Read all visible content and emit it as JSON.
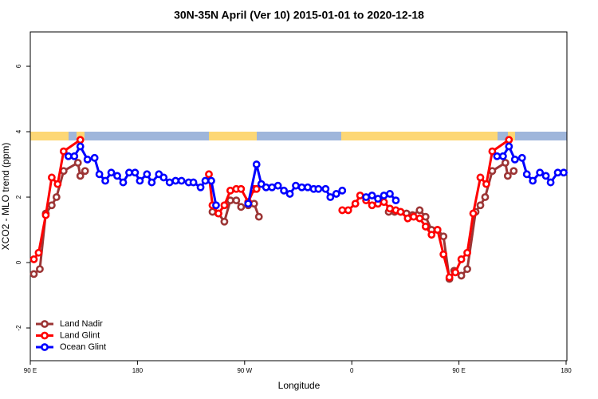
{
  "chart_data": {
    "type": "line",
    "title": "30N-35N April (Ver 10)   2015-01-01 to 2020-12-18",
    "xlabel": "Longitude",
    "ylabel": "XCO2 - MLO trend (ppm)",
    "xlim": [
      90,
      540
    ],
    "ylim": [
      -3,
      7.05
    ],
    "xticks": [
      {
        "value": 90,
        "label": "90 E"
      },
      180,
      {
        "value": 270,
        "label": "90 W"
      },
      {
        "value": 360,
        "label": "0"
      },
      {
        "value": 450,
        "label": "90 E"
      },
      {
        "value": 540,
        "label": "180"
      }
    ],
    "yticks": [
      -2,
      0,
      2,
      4,
      6
    ],
    "legend": "bottom-left",
    "series": [
      {
        "name": "Land Nadir",
        "color": "#9c3535",
        "x": [
          93,
          98,
          103,
          108,
          112,
          118,
          130,
          132,
          136,
          null,
          243,
          248,
          253,
          258,
          263,
          267,
          273,
          278,
          282,
          null,
          391,
          396,
          401,
          406,
          411,
          417,
          422,
          427,
          432,
          437,
          442,
          446,
          452,
          457,
          464,
          468,
          472,
          478,
          489,
          491,
          496
        ],
        "values": [
          -0.35,
          -0.2,
          1.5,
          1.75,
          2.0,
          2.8,
          3.05,
          2.65,
          2.8,
          null,
          1.55,
          1.5,
          1.25,
          1.9,
          1.9,
          1.7,
          1.75,
          1.8,
          1.4,
          null,
          1.55,
          1.55,
          1.55,
          1.5,
          1.45,
          1.6,
          1.4,
          1.0,
          1.0,
          0.8,
          -0.5,
          -0.25,
          -0.4,
          -0.2,
          1.55,
          1.75,
          2.0,
          2.8,
          3.05,
          2.65,
          2.8
        ]
      },
      {
        "name": "Land Glint",
        "color": "#ff0000",
        "x": [
          93,
          97,
          103,
          108,
          113,
          118,
          132,
          null,
          240,
          243,
          248,
          253,
          258,
          263,
          267,
          273,
          278,
          280,
          null,
          352,
          357,
          363,
          367,
          372,
          377,
          382,
          387,
          392,
          397,
          401,
          407,
          412,
          417,
          422,
          427,
          432,
          437,
          442,
          447,
          452,
          457,
          462,
          468,
          473,
          478,
          492
        ],
        "values": [
          0.1,
          0.3,
          1.45,
          2.6,
          2.4,
          3.4,
          3.75,
          null,
          2.7,
          1.75,
          1.5,
          1.75,
          2.2,
          2.25,
          2.25,
          1.85,
          2.25,
          2.25,
          null,
          1.6,
          1.6,
          1.8,
          2.05,
          1.9,
          1.75,
          1.8,
          1.85,
          1.65,
          1.6,
          1.55,
          1.35,
          1.4,
          1.35,
          1.1,
          0.85,
          1.0,
          0.25,
          -0.45,
          -0.3,
          0.1,
          0.3,
          1.5,
          2.6,
          2.4,
          3.4,
          3.75
        ]
      },
      {
        "name": "Ocean Glint",
        "color": "#0000ff",
        "x": [
          122,
          127,
          132,
          138,
          144,
          148,
          153,
          158,
          163,
          168,
          173,
          178,
          182,
          188,
          192,
          198,
          202,
          207,
          212,
          217,
          223,
          227,
          233,
          237,
          242,
          246,
          null,
          273,
          280,
          284,
          288,
          293,
          298,
          303,
          308,
          313,
          318,
          323,
          328,
          332,
          338,
          342,
          347,
          352,
          null,
          372,
          377,
          382,
          387,
          392,
          397,
          null,
          482,
          487,
          492,
          497,
          503,
          507,
          512,
          518,
          523,
          527,
          533,
          538
        ],
        "values": [
          3.25,
          3.25,
          3.55,
          3.15,
          3.2,
          2.7,
          2.5,
          2.75,
          2.65,
          2.45,
          2.75,
          2.75,
          2.5,
          2.7,
          2.45,
          2.7,
          2.6,
          2.45,
          2.5,
          2.5,
          2.45,
          2.45,
          2.3,
          2.5,
          2.5,
          1.75,
          null,
          1.8,
          3.0,
          2.4,
          2.3,
          2.3,
          2.35,
          2.2,
          2.1,
          2.35,
          2.3,
          2.3,
          2.25,
          2.25,
          2.25,
          2.0,
          2.1,
          2.2,
          null,
          2.0,
          2.05,
          1.95,
          2.05,
          2.1,
          1.9,
          null,
          3.25,
          3.25,
          3.55,
          3.15,
          3.2,
          2.7,
          2.5,
          2.75,
          2.65,
          2.45,
          2.75,
          2.75
        ]
      }
    ]
  }
}
